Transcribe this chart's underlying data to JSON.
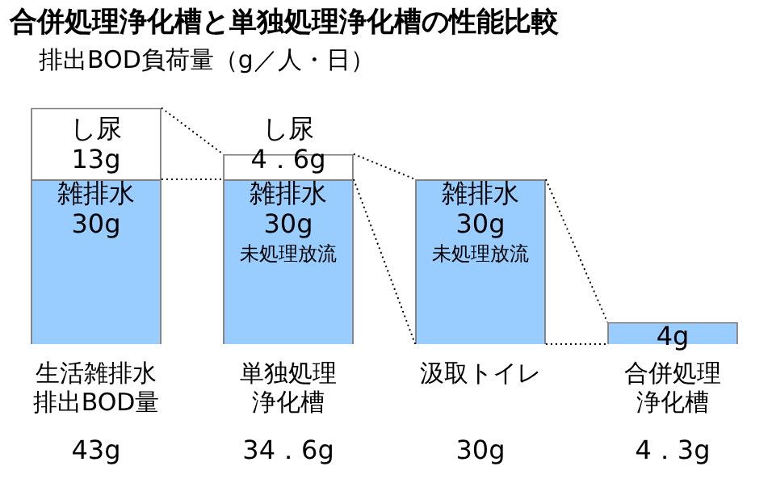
{
  "chart_data": {
    "type": "bar",
    "title": "合併処理浄化槽と単独処理浄化槽の性能比較",
    "subtitle": "排出BOD負荷量（g／人・日）",
    "categories": [
      "生活雑排水排出BOD量",
      "単独処理浄化槽",
      "汲取トイレ",
      "合併処理浄化槽"
    ],
    "stacked": true,
    "series": [
      {
        "color": "#99ccff",
        "values": [
          30,
          30,
          30,
          4
        ],
        "value_labels": [
          "雑排水\n30g",
          "雑排水\n30g\n未処理放流",
          "雑排水\n30g\n未処理放流",
          "4g"
        ]
      },
      {
        "color": "#ffffff",
        "values": [
          13,
          4.6,
          null,
          null
        ],
        "value_labels": [
          "し尿\n13g",
          "し尿\n4．6g",
          null,
          null
        ]
      }
    ],
    "annotations": [
      "43g",
      "34．6g",
      "30g",
      "4．3g"
    ],
    "legend": false,
    "grid": false
  }
}
